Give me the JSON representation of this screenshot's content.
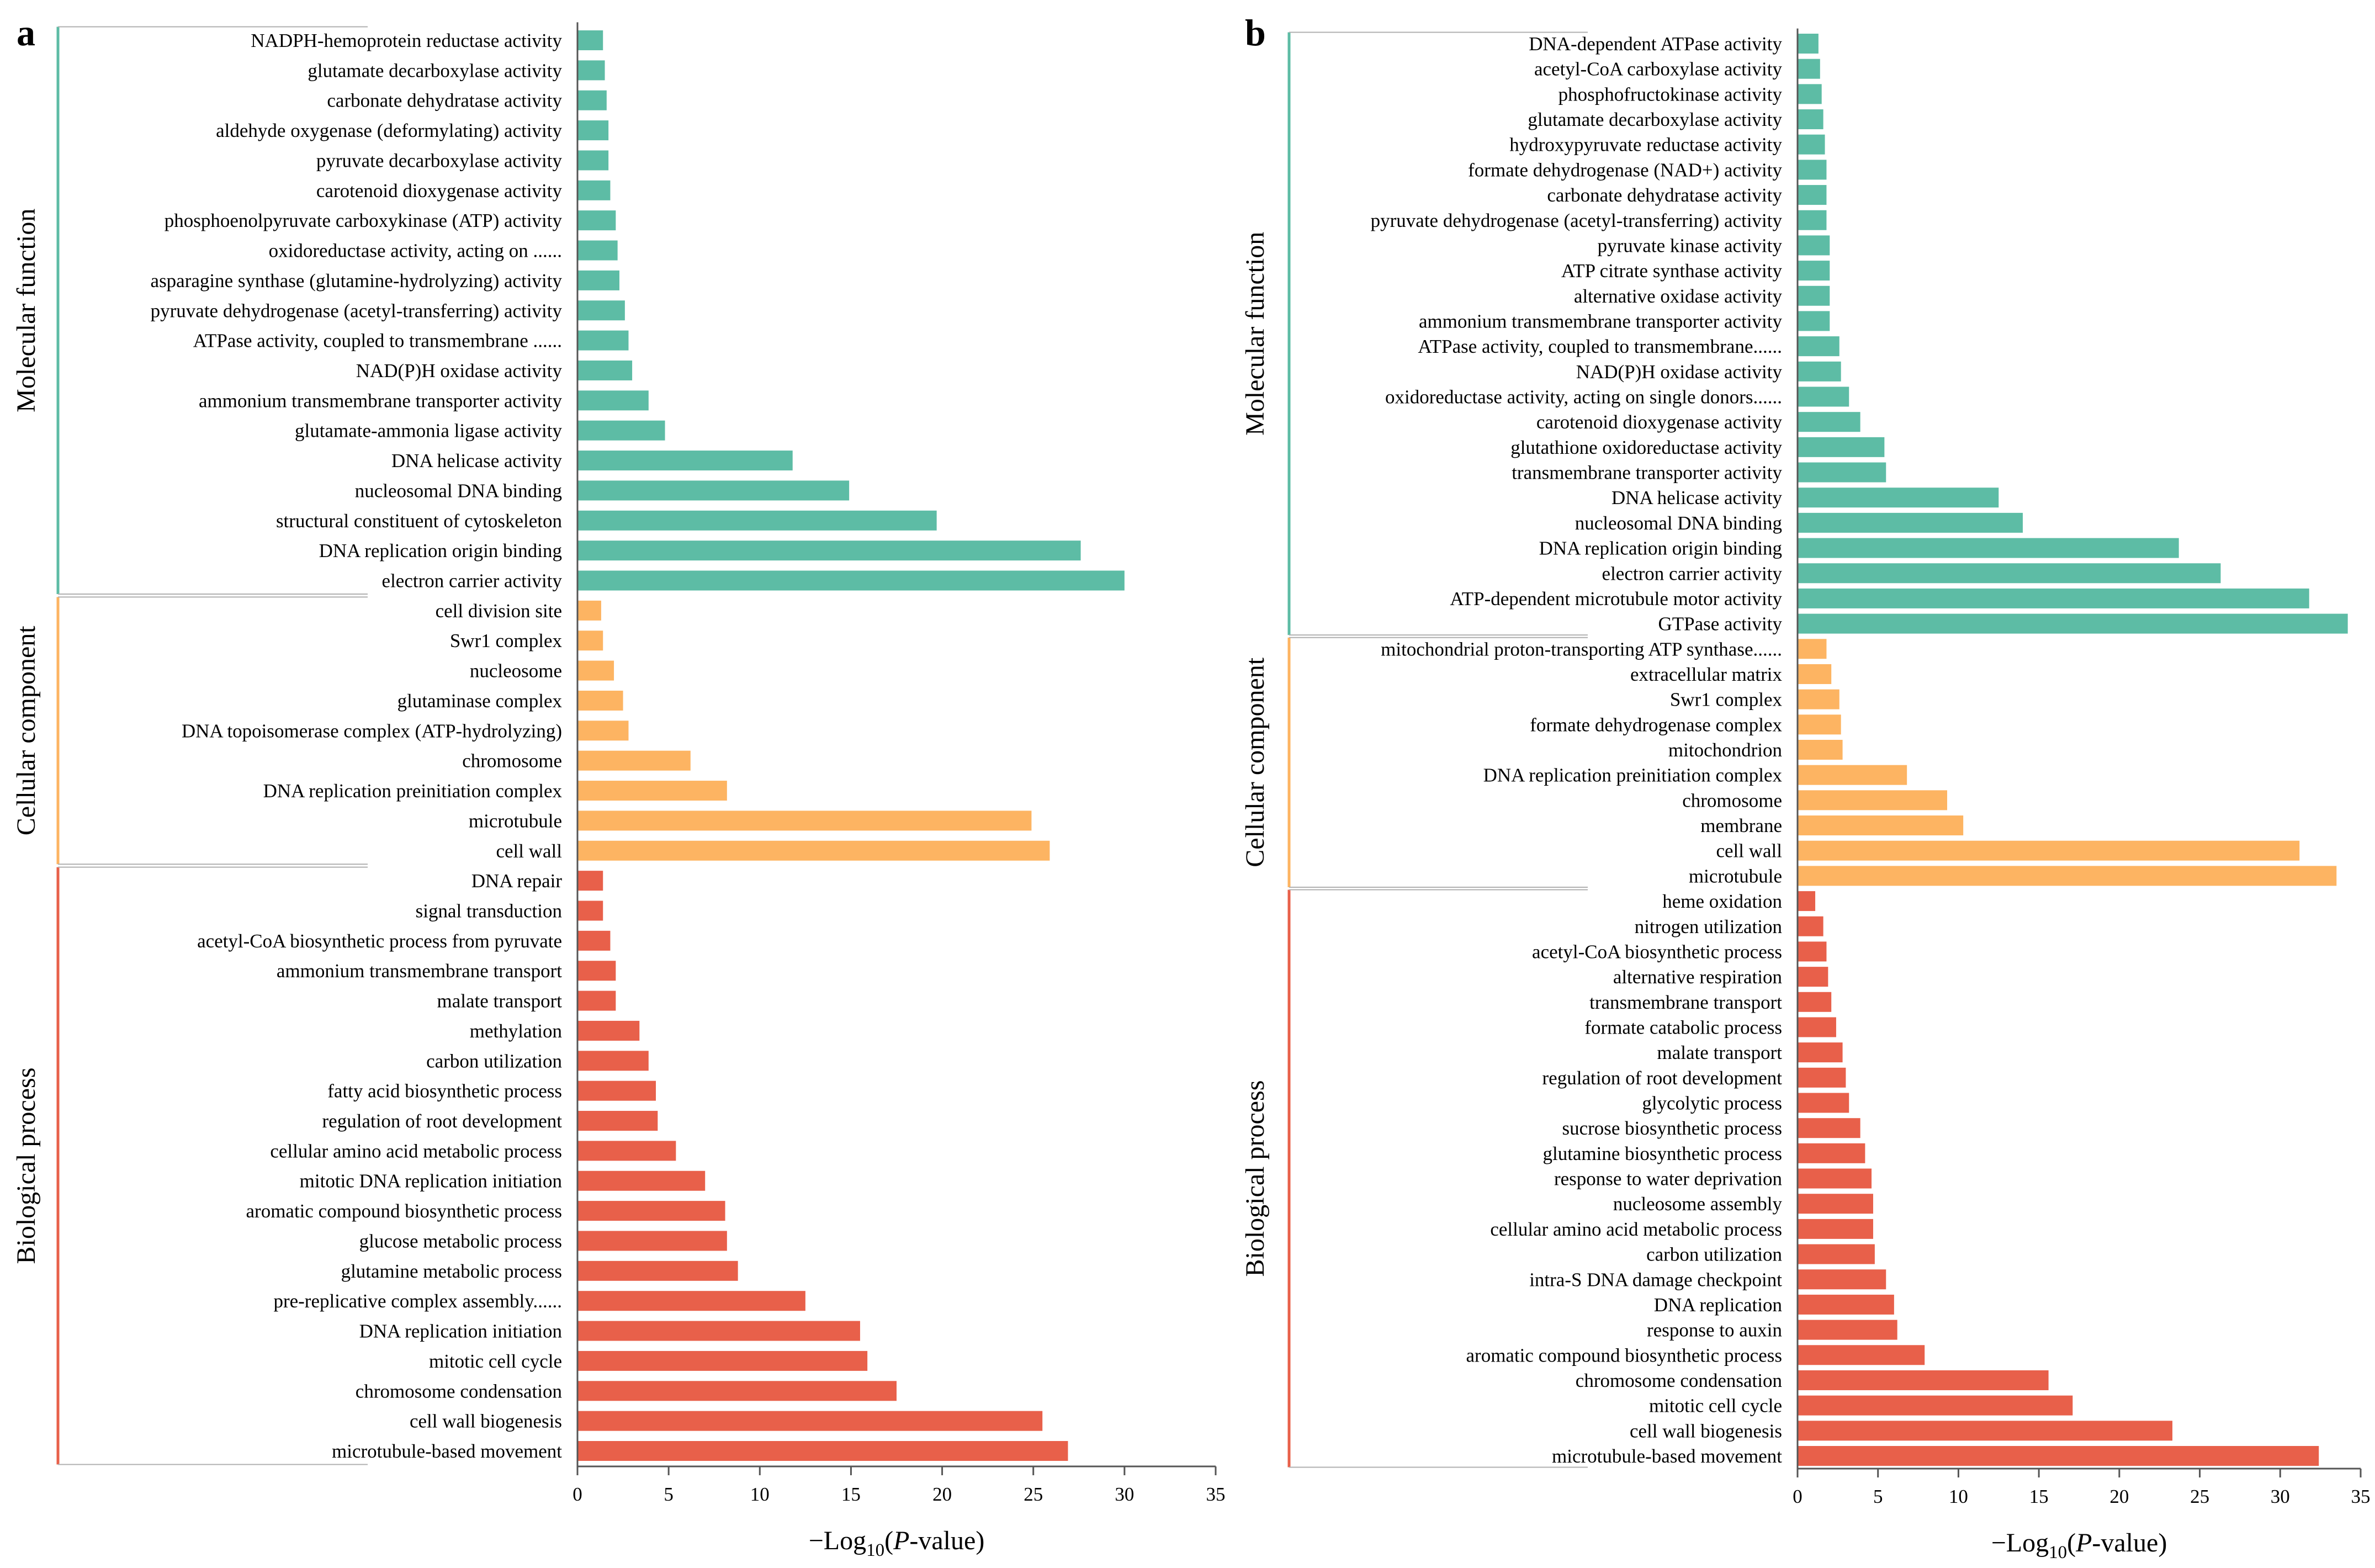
{
  "colors": {
    "molecular_function": "#5dbca5",
    "cellular_component": "#fdb462",
    "biological_process": "#e8604a",
    "axis": "#555555",
    "connector": "#b0b0b0"
  },
  "chart_data": [
    {
      "panel": "a",
      "type": "bar",
      "orientation": "horizontal",
      "xlabel_prefix": "−Log",
      "xlabel_subscript": "10",
      "xlabel_open": "(",
      "xlabel_italic": "P",
      "xlabel_suffix": "-value)",
      "xlim": [
        0,
        35
      ],
      "xticks": [
        0,
        5,
        10,
        15,
        20,
        25,
        30,
        35
      ],
      "groups": [
        {
          "name": "Molecular function",
          "color_key": "molecular_function",
          "categories": [
            "NADPH-hemoprotein reductase activity",
            "glutamate decarboxylase activity",
            "carbonate dehydratase activity",
            "aldehyde oxygenase (deformylating) activity",
            "pyruvate decarboxylase activity",
            "carotenoid dioxygenase activity",
            "phosphoenolpyruvate carboxykinase (ATP) activity",
            "oxidoreductase activity, acting on ......",
            "asparagine synthase (glutamine-hydrolyzing) activity",
            "pyruvate dehydrogenase (acetyl-transferring) activity",
            "ATPase activity, coupled to transmembrane ......",
            "NAD(P)H oxidase activity",
            "ammonium transmembrane transporter activity",
            "glutamate-ammonia ligase activity",
            "DNA helicase activity",
            "nucleosomal DNA binding",
            "structural constituent of cytoskeleton",
            "DNA replication origin binding",
            "electron carrier activity"
          ],
          "values": [
            1.4,
            1.5,
            1.6,
            1.7,
            1.7,
            1.8,
            2.1,
            2.2,
            2.3,
            2.6,
            2.8,
            3.0,
            3.9,
            4.8,
            11.8,
            14.9,
            19.7,
            27.6,
            30.0
          ]
        },
        {
          "name": "Cellular component",
          "color_key": "cellular_component",
          "categories": [
            "cell division site",
            "Swr1 complex",
            "nucleosome",
            "glutaminase complex",
            "DNA topoisomerase complex (ATP-hydrolyzing)",
            "chromosome",
            "DNA replication preinitiation complex",
            "microtubule",
            "cell wall"
          ],
          "values": [
            1.3,
            1.4,
            2.0,
            2.5,
            2.8,
            6.2,
            8.2,
            24.9,
            25.9
          ]
        },
        {
          "name": "Biological process",
          "color_key": "biological_process",
          "categories": [
            "DNA repair",
            "signal transduction",
            "acetyl-CoA biosynthetic process from pyruvate",
            "ammonium transmembrane transport",
            "malate transport",
            "methylation",
            "carbon utilization",
            "fatty acid biosynthetic process",
            "regulation of root development",
            "cellular amino acid metabolic process",
            "mitotic DNA replication initiation",
            "aromatic compound biosynthetic process",
            "glucose metabolic process",
            "glutamine metabolic process",
            "pre-replicative complex assembly......",
            "DNA replication initiation",
            "mitotic cell cycle",
            "chromosome condensation",
            "cell wall biogenesis",
            "microtubule-based movement"
          ],
          "values": [
            1.4,
            1.4,
            1.8,
            2.1,
            2.1,
            3.4,
            3.9,
            4.3,
            4.4,
            5.4,
            7.0,
            8.1,
            8.2,
            8.8,
            12.5,
            15.5,
            15.9,
            17.5,
            25.5,
            26.9
          ]
        }
      ]
    },
    {
      "panel": "b",
      "type": "bar",
      "orientation": "horizontal",
      "xlabel_prefix": "−Log",
      "xlabel_subscript": "10",
      "xlabel_open": "(",
      "xlabel_italic": "P",
      "xlabel_suffix": "-value)",
      "xlim": [
        0,
        35
      ],
      "xticks": [
        0,
        5,
        10,
        15,
        20,
        25,
        30,
        35
      ],
      "groups": [
        {
          "name": "Molecular function",
          "color_key": "molecular_function",
          "categories": [
            "DNA-dependent ATPase activity",
            "acetyl-CoA carboxylase activity",
            "phosphofructokinase activity",
            "glutamate decarboxylase activity",
            "hydroxypyruvate reductase activity",
            "formate dehydrogenase (NAD+) activity",
            "carbonate dehydratase activity",
            "pyruvate dehydrogenase (acetyl-transferring) activity",
            "pyruvate kinase activity",
            "ATP citrate synthase activity",
            "alternative oxidase activity",
            "ammonium transmembrane transporter activity",
            "ATPase activity, coupled to transmembrane......",
            "NAD(P)H oxidase activity",
            "oxidoreductase activity, acting on single donors......",
            "carotenoid dioxygenase activity",
            "glutathione oxidoreductase activity",
            "transmembrane transporter activity",
            "DNA helicase activity",
            "nucleosomal DNA binding",
            "DNA replication origin binding",
            "electron carrier activity",
            "ATP-dependent microtubule motor activity",
            "GTPase activity"
          ],
          "values": [
            1.3,
            1.4,
            1.5,
            1.6,
            1.7,
            1.8,
            1.8,
            1.8,
            2.0,
            2.0,
            2.0,
            2.0,
            2.6,
            2.7,
            3.2,
            3.9,
            5.4,
            5.5,
            12.5,
            14.0,
            23.7,
            26.3,
            31.8,
            34.2
          ]
        },
        {
          "name": "Cellular component",
          "color_key": "cellular_component",
          "categories": [
            "mitochondrial proton-transporting ATP synthase......",
            "extracellular matrix",
            "Swr1 complex",
            "formate dehydrogenase complex",
            "mitochondrion",
            "DNA replication preinitiation complex",
            "chromosome",
            "membrane",
            "cell wall",
            "microtubule"
          ],
          "values": [
            1.8,
            2.1,
            2.6,
            2.7,
            2.8,
            6.8,
            9.3,
            10.3,
            31.2,
            33.5
          ]
        },
        {
          "name": "Biological process",
          "color_key": "biological_process",
          "categories": [
            "heme oxidation",
            "nitrogen utilization",
            "acetyl-CoA biosynthetic process",
            "alternative respiration",
            "transmembrane transport",
            "formate catabolic process",
            "malate transport",
            "regulation of root development",
            "glycolytic process",
            "sucrose biosynthetic process",
            "glutamine biosynthetic process",
            "response to water deprivation",
            "nucleosome assembly",
            "cellular amino acid metabolic process",
            "carbon utilization",
            "intra-S DNA damage checkpoint",
            "DNA replication",
            "response to auxin",
            "aromatic compound biosynthetic process",
            "chromosome condensation",
            "mitotic cell cycle",
            "cell wall biogenesis",
            "microtubule-based movement"
          ],
          "values": [
            1.1,
            1.6,
            1.8,
            1.9,
            2.1,
            2.4,
            2.8,
            3.0,
            3.2,
            3.9,
            4.2,
            4.6,
            4.7,
            4.7,
            4.8,
            5.5,
            6.0,
            6.2,
            7.9,
            15.6,
            17.1,
            23.3,
            32.4
          ]
        }
      ]
    }
  ]
}
